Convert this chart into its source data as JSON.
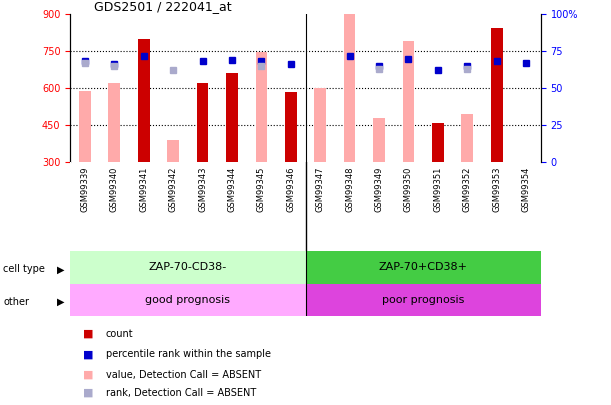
{
  "title": "GDS2501 / 222041_at",
  "samples": [
    "GSM99339",
    "GSM99340",
    "GSM99341",
    "GSM99342",
    "GSM99343",
    "GSM99344",
    "GSM99345",
    "GSM99346",
    "GSM99347",
    "GSM99348",
    "GSM99349",
    "GSM99350",
    "GSM99351",
    "GSM99352",
    "GSM99353",
    "GSM99354"
  ],
  "count_values": [
    null,
    null,
    800,
    null,
    620,
    660,
    null,
    585,
    null,
    null,
    null,
    null,
    460,
    null,
    845,
    null
  ],
  "absent_values": [
    590,
    620,
    null,
    390,
    null,
    null,
    745,
    null,
    600,
    905,
    480,
    790,
    null,
    495,
    null,
    null
  ],
  "percentile_rank": [
    68,
    66,
    72,
    null,
    68,
    69,
    68,
    66,
    null,
    72,
    65,
    70,
    62,
    65,
    68,
    67
  ],
  "rank_absent": [
    67,
    65,
    null,
    62,
    null,
    null,
    65,
    null,
    null,
    null,
    63,
    null,
    null,
    63,
    null,
    null
  ],
  "group1_count": 8,
  "group2_count": 8,
  "group1_cell": "ZAP-70-CD38-",
  "group2_cell": "ZAP-70+CD38+",
  "group1_other": "good prognosis",
  "group2_other": "poor prognosis",
  "ylim_left": [
    300,
    900
  ],
  "ylim_right": [
    0,
    100
  ],
  "yticks_left": [
    300,
    450,
    600,
    750,
    900
  ],
  "yticks_right": [
    0,
    25,
    50,
    75,
    100
  ],
  "color_count": "#cc0000",
  "color_absent_val": "#ffaaaa",
  "color_percentile": "#0000cc",
  "color_rank_absent": "#aaaacc",
  "color_cell1": "#ccffcc",
  "color_cell2": "#44cc44",
  "color_other1": "#ffaaff",
  "color_other2": "#dd44dd",
  "bg_plot": "#ffffff",
  "bg_labels": "#cccccc",
  "legend_items": [
    {
      "label": "count",
      "color": "#cc0000"
    },
    {
      "label": "percentile rank within the sample",
      "color": "#0000cc"
    },
    {
      "label": "value, Detection Call = ABSENT",
      "color": "#ffaaaa"
    },
    {
      "label": "rank, Detection Call = ABSENT",
      "color": "#aaaacc"
    }
  ]
}
